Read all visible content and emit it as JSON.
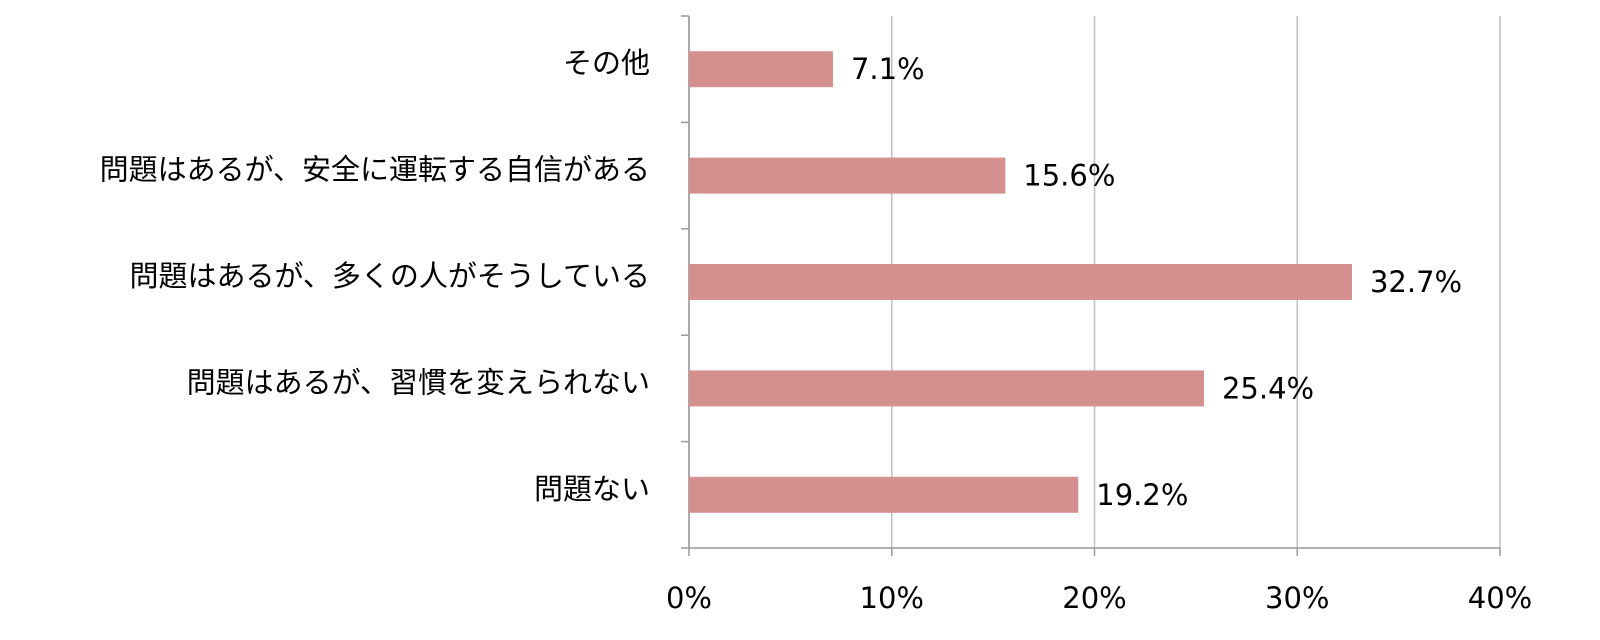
{
  "chart_data": {
    "type": "bar",
    "orientation": "horizontal",
    "categories": [
      "その他",
      "問題はあるが、安全に運転する自信がある",
      "問題はあるが、多くの人がそうしている",
      "問題はあるが、習慣を変えられない",
      "問題ない"
    ],
    "values": [
      7.1,
      15.6,
      32.7,
      25.4,
      19.2
    ],
    "value_labels": [
      "7.1%",
      "15.6%",
      "32.7%",
      "25.4%",
      "19.2%"
    ],
    "color": "#d4908e",
    "xlim": [
      0,
      40
    ],
    "xticks": [
      {
        "value": 0,
        "label": "0%"
      },
      {
        "value": 10,
        "label": "10%"
      },
      {
        "value": 20,
        "label": "20%"
      },
      {
        "value": 30,
        "label": "30%"
      },
      {
        "value": 40,
        "label": "40%"
      }
    ],
    "grid": true
  }
}
